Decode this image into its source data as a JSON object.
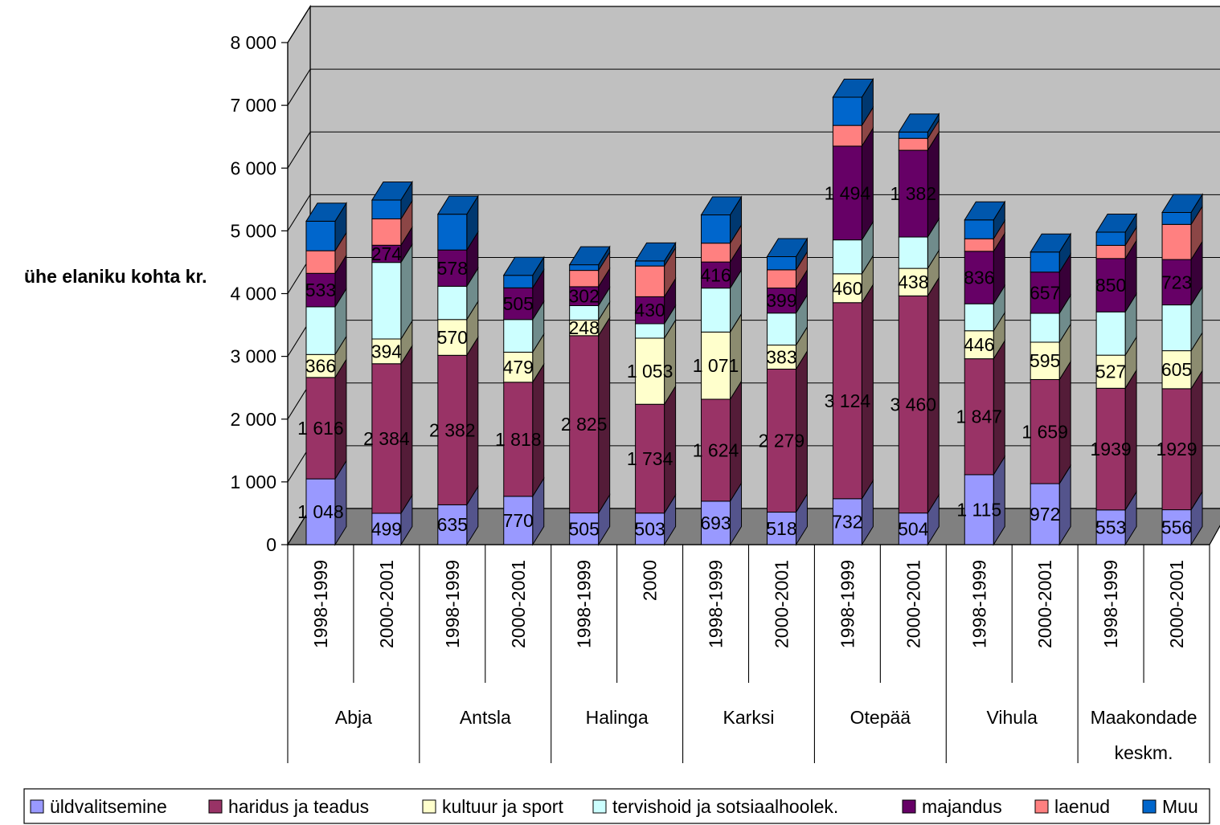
{
  "chart_data": {
    "type": "bar",
    "stacked": true,
    "three_d": true,
    "ylabel": "ühe elaniku kohta kr.",
    "ylim": [
      0,
      8000
    ],
    "yticks": [
      {
        "value": 0,
        "label": "0"
      },
      {
        "value": 1000,
        "label": "1 000"
      },
      {
        "value": 2000,
        "label": "2 000"
      },
      {
        "value": 3000,
        "label": "3 000"
      },
      {
        "value": 4000,
        "label": "4 000"
      },
      {
        "value": 5000,
        "label": "5 000"
      },
      {
        "value": 6000,
        "label": "6 000"
      },
      {
        "value": 7000,
        "label": "7 000"
      },
      {
        "value": 8000,
        "label": "8 000"
      }
    ],
    "grid": true,
    "legend_position": "bottom",
    "categories": [
      "1998-1999",
      "2000-2001",
      "1998-1999",
      "2000-2001",
      "1998-1999",
      "2000",
      "1998-1999",
      "2000-2001",
      "1998-1999",
      "2000-2001",
      "1998-1999",
      "2000-2001",
      "1998-1999",
      "2000-2001"
    ],
    "groups": [
      {
        "lines": [
          "Abja"
        ],
        "span": 2
      },
      {
        "lines": [
          "Antsla"
        ],
        "span": 2
      },
      {
        "lines": [
          "Halinga"
        ],
        "span": 2
      },
      {
        "lines": [
          "Karksi"
        ],
        "span": 2
      },
      {
        "lines": [
          "Otepää"
        ],
        "span": 2
      },
      {
        "lines": [
          "Vihula"
        ],
        "span": 2
      },
      {
        "lines": [
          "Maakondade",
          "keskm."
        ],
        "span": 2
      }
    ],
    "series": [
      {
        "name": "üldvalitsemine",
        "color": "#9999FF",
        "values": [
          1048,
          499,
          635,
          770,
          505,
          503,
          693,
          518,
          732,
          504,
          1115,
          972,
          553,
          556
        ],
        "labels": [
          "1 048",
          "499",
          "635",
          "770",
          "505",
          "503",
          "693",
          "518",
          "732",
          "504",
          "1 115",
          "972",
          "553",
          "556"
        ]
      },
      {
        "name": "haridus ja teadus",
        "color": "#993366",
        "values": [
          1616,
          2384,
          2382,
          1818,
          2825,
          1734,
          1624,
          2279,
          3124,
          3460,
          1847,
          1659,
          1939,
          1929
        ],
        "labels": [
          "1 616",
          "2 384",
          "2 382",
          "1 818",
          "2 825",
          "1 734",
          "1 624",
          "2 279",
          "3 124",
          "3 460",
          "1 847",
          "1 659",
          "1939",
          "1929"
        ]
      },
      {
        "name": "kultuur ja sport",
        "color": "#FFFFCC",
        "values": [
          366,
          394,
          570,
          479,
          248,
          1053,
          1071,
          383,
          460,
          438,
          446,
          595,
          527,
          605
        ],
        "labels": [
          "366",
          "394",
          "570",
          "479",
          "248",
          "1 053",
          "1 071",
          "383",
          "460",
          "438",
          "446",
          "595",
          "527",
          "605"
        ]
      },
      {
        "name": "tervishoid ja sotsiaalhoolek.",
        "color": "#CCFFFF",
        "values": [
          760,
          1220,
          530,
          520,
          230,
          230,
          700,
          510,
          540,
          500,
          430,
          460,
          690,
          730
        ],
        "labels": []
      },
      {
        "name": "majandus",
        "color": "#660066",
        "values": [
          533,
          274,
          578,
          505,
          302,
          430,
          416,
          399,
          1494,
          1382,
          836,
          657,
          850,
          723
        ],
        "labels": [
          "533",
          "274",
          "578",
          "505",
          "302",
          "430",
          "416",
          "399",
          "1 494",
          "1 382",
          "836",
          "657",
          "850",
          "723"
        ]
      },
      {
        "name": "laenud",
        "color": "#FF8080",
        "values": [
          360,
          420,
          0,
          0,
          260,
          490,
          300,
          290,
          330,
          190,
          200,
          0,
          210,
          560
        ],
        "labels": []
      },
      {
        "name": "Muu",
        "color": "#0066CC",
        "values": [
          470,
          300,
          570,
          200,
          90,
          80,
          450,
          210,
          450,
          100,
          300,
          320,
          210,
          190
        ],
        "labels": []
      }
    ]
  }
}
